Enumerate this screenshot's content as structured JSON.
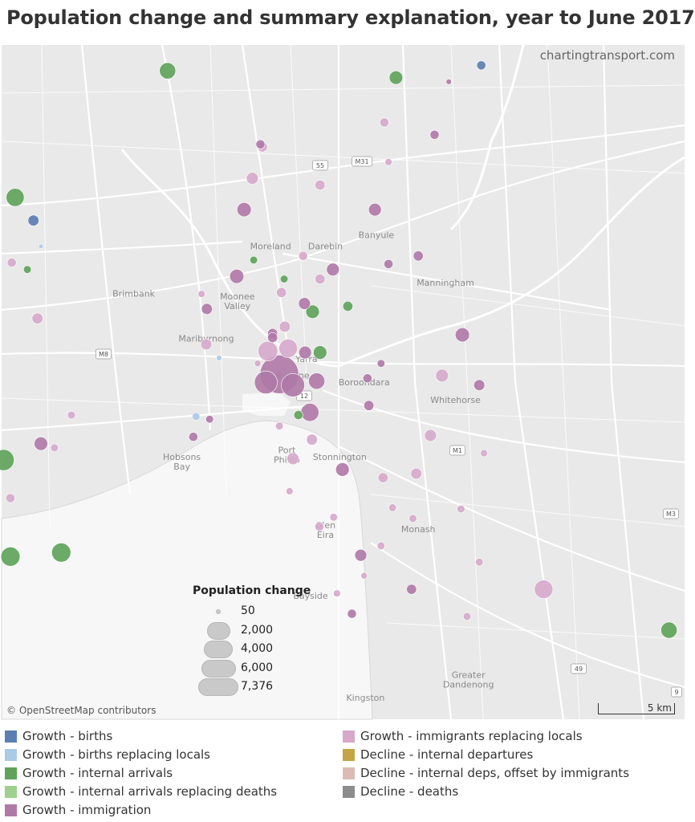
{
  "title": "Population change and summary explanation, year to June 2017",
  "source": "chartingtransport.com",
  "attribution": "© OpenStreetMap contributors",
  "scale_label": "5 km",
  "size_legend": {
    "title": "Population change",
    "entries": [
      {
        "label": "50",
        "value": 50
      },
      {
        "label": "2,000",
        "value": 2000
      },
      {
        "label": "4,000",
        "value": 4000
      },
      {
        "label": "6,000",
        "value": 6000
      },
      {
        "label": "7,376",
        "value": 7376
      }
    ]
  },
  "categories": [
    {
      "key": "births",
      "label": "Growth - births",
      "color": "#5b7fb0"
    },
    {
      "key": "births_replacing",
      "label": "Growth - births replacing locals",
      "color": "#aacbe6"
    },
    {
      "key": "internal",
      "label": "Growth - internal arrivals",
      "color": "#5fa35a"
    },
    {
      "key": "internal_replacing",
      "label": "Growth - internal arrivals replacing deaths",
      "color": "#9dd18d"
    },
    {
      "key": "immigration",
      "label": "Growth - immigration",
      "color": "#b07aa7"
    },
    {
      "key": "immig_replacing",
      "label": "Growth - immigrants replacing locals",
      "color": "#d6a9cb"
    },
    {
      "key": "decline_internal",
      "label": "Decline - internal departures",
      "color": "#c3a545"
    },
    {
      "key": "decline_offset",
      "label": "Decline - internal deps, offset by immigrants",
      "color": "#dcbcb2"
    },
    {
      "key": "decline_deaths",
      "label": "Decline - deaths",
      "color": "#8c8c8c"
    }
  ],
  "places": [
    "Brimbank",
    "Moonee Valley",
    "Moreland",
    "Darebin",
    "Banyule",
    "Manningham",
    "Maribyrnong",
    "Melbourne",
    "Yarra",
    "Boroondara",
    "Whitehorse",
    "Hobsons Bay",
    "Port Phillip",
    "Stonnington",
    "Glen Eira",
    "Monash",
    "Bayside",
    "Kingston",
    "Greater Dandenong"
  ],
  "road_shields": [
    "55",
    "M31",
    "M8",
    "12",
    "M1",
    "M3",
    "49",
    "9"
  ],
  "chart_data": {
    "type": "bubble-map",
    "title": "Population change and summary explanation, year to June 2017",
    "size_metric": "Population change",
    "size_max": 7376,
    "points": [
      {
        "lon": 144.955,
        "lat": -37.812,
        "value": 7376,
        "cat": "immigration"
      },
      {
        "lon": 144.935,
        "lat": -37.818,
        "value": 2600,
        "cat": "immigration"
      },
      {
        "lon": 144.975,
        "lat": -37.82,
        "value": 2700,
        "cat": "immigration"
      },
      {
        "lon": 144.938,
        "lat": -37.795,
        "value": 1900,
        "cat": "immig_replacing"
      },
      {
        "lon": 144.968,
        "lat": -37.793,
        "value": 1700,
        "cat": "immig_replacing"
      },
      {
        "lon": 145.01,
        "lat": -37.817,
        "value": 1300,
        "cat": "immigration"
      },
      {
        "lon": 145.0,
        "lat": -37.84,
        "value": 1600,
        "cat": "immigration"
      },
      {
        "lon": 144.993,
        "lat": -37.796,
        "value": 800,
        "cat": "immigration"
      },
      {
        "lon": 145.015,
        "lat": -37.796,
        "value": 900,
        "cat": "internal"
      },
      {
        "lon": 145.345,
        "lat": -37.97,
        "value": 1700,
        "cat": "immig_replacing"
      },
      {
        "lon": 144.548,
        "lat": -37.875,
        "value": 2200,
        "cat": "internal"
      },
      {
        "lon": 144.558,
        "lat": -37.946,
        "value": 1800,
        "cat": "internal"
      },
      {
        "lon": 144.633,
        "lat": -37.943,
        "value": 1800,
        "cat": "internal"
      },
      {
        "lon": 144.565,
        "lat": -37.682,
        "value": 1600,
        "cat": "internal"
      },
      {
        "lon": 144.79,
        "lat": -37.589,
        "value": 1300,
        "cat": "internal"
      },
      {
        "lon": 145.53,
        "lat": -38.0,
        "value": 1300,
        "cat": "internal"
      },
      {
        "lon": 145.127,
        "lat": -37.594,
        "value": 900,
        "cat": "internal"
      },
      {
        "lon": 144.962,
        "lat": -37.742,
        "value": 300,
        "cat": "internal"
      },
      {
        "lon": 144.917,
        "lat": -37.728,
        "value": 300,
        "cat": "internal"
      },
      {
        "lon": 145.004,
        "lat": -37.766,
        "value": 900,
        "cat": "internal"
      },
      {
        "lon": 145.056,
        "lat": -37.762,
        "value": 500,
        "cat": "internal"
      },
      {
        "lon": 144.983,
        "lat": -37.842,
        "value": 400,
        "cat": "internal"
      },
      {
        "lon": 144.583,
        "lat": -37.735,
        "value": 300,
        "cat": "internal"
      },
      {
        "lon": 144.592,
        "lat": -37.699,
        "value": 600,
        "cat": "births"
      },
      {
        "lon": 145.253,
        "lat": -37.585,
        "value": 400,
        "cat": "births"
      },
      {
        "lon": 144.603,
        "lat": -37.718,
        "value": 100,
        "cat": "births_replacing"
      },
      {
        "lon": 144.866,
        "lat": -37.8,
        "value": 150,
        "cat": "births_replacing"
      },
      {
        "lon": 144.832,
        "lat": -37.843,
        "value": 300,
        "cat": "births_replacing"
      },
      {
        "lon": 144.903,
        "lat": -37.691,
        "value": 1000,
        "cat": "immigration"
      },
      {
        "lon": 145.096,
        "lat": -37.691,
        "value": 800,
        "cat": "immigration"
      },
      {
        "lon": 144.892,
        "lat": -37.74,
        "value": 1000,
        "cat": "immigration"
      },
      {
        "lon": 144.848,
        "lat": -37.764,
        "value": 600,
        "cat": "immigration"
      },
      {
        "lon": 144.992,
        "lat": -37.76,
        "value": 700,
        "cat": "immigration"
      },
      {
        "lon": 145.034,
        "lat": -37.735,
        "value": 800,
        "cat": "immigration"
      },
      {
        "lon": 144.945,
        "lat": -37.782,
        "value": 500,
        "cat": "immigration"
      },
      {
        "lon": 145.225,
        "lat": -37.783,
        "value": 1000,
        "cat": "immigration"
      },
      {
        "lon": 145.25,
        "lat": -37.82,
        "value": 600,
        "cat": "immigration"
      },
      {
        "lon": 145.087,
        "lat": -37.835,
        "value": 500,
        "cat": "immigration"
      },
      {
        "lon": 145.048,
        "lat": -37.882,
        "value": 900,
        "cat": "immigration"
      },
      {
        "lon": 145.075,
        "lat": -37.945,
        "value": 700,
        "cat": "immigration"
      },
      {
        "lon": 145.15,
        "lat": -37.97,
        "value": 500,
        "cat": "immigration"
      },
      {
        "lon": 145.062,
        "lat": -37.988,
        "value": 400,
        "cat": "immigration"
      },
      {
        "lon": 144.603,
        "lat": -37.863,
        "value": 900,
        "cat": "immigration"
      },
      {
        "lon": 144.828,
        "lat": -37.858,
        "value": 400,
        "cat": "immigration"
      },
      {
        "lon": 145.16,
        "lat": -37.725,
        "value": 500,
        "cat": "immigration"
      },
      {
        "lon": 145.184,
        "lat": -37.636,
        "value": 400,
        "cat": "immigration"
      },
      {
        "lon": 144.927,
        "lat": -37.643,
        "value": 400,
        "cat": "immigration"
      },
      {
        "lon": 145.116,
        "lat": -37.731,
        "value": 400,
        "cat": "immigration"
      },
      {
        "lon": 145.085,
        "lat": -37.815,
        "value": 400,
        "cat": "immigration"
      },
      {
        "lon": 145.105,
        "lat": -37.804,
        "value": 300,
        "cat": "immigration"
      },
      {
        "lon": 144.852,
        "lat": -37.845,
        "value": 300,
        "cat": "immigration"
      },
      {
        "lon": 144.945,
        "lat": -37.785,
        "value": 500,
        "cat": "immigration"
      },
      {
        "lon": 145.205,
        "lat": -37.597,
        "value": 150,
        "cat": "immigration"
      },
      {
        "lon": 145.015,
        "lat": -37.742,
        "value": 500,
        "cat": "immig_replacing"
      },
      {
        "lon": 145.195,
        "lat": -37.813,
        "value": 800,
        "cat": "immig_replacing"
      },
      {
        "lon": 145.178,
        "lat": -37.857,
        "value": 700,
        "cat": "immig_replacing"
      },
      {
        "lon": 145.157,
        "lat": -37.885,
        "value": 600,
        "cat": "immig_replacing"
      },
      {
        "lon": 145.003,
        "lat": -37.86,
        "value": 600,
        "cat": "immig_replacing"
      },
      {
        "lon": 144.975,
        "lat": -37.874,
        "value": 700,
        "cat": "immig_replacing"
      },
      {
        "lon": 144.93,
        "lat": -37.645,
        "value": 500,
        "cat": "immig_replacing"
      },
      {
        "lon": 144.915,
        "lat": -37.668,
        "value": 700,
        "cat": "immig_replacing"
      },
      {
        "lon": 145.015,
        "lat": -37.673,
        "value": 500,
        "cat": "immig_replacing"
      },
      {
        "lon": 144.958,
        "lat": -37.752,
        "value": 500,
        "cat": "immig_replacing"
      },
      {
        "lon": 144.963,
        "lat": -37.777,
        "value": 600,
        "cat": "immig_replacing"
      },
      {
        "lon": 144.99,
        "lat": -37.725,
        "value": 400,
        "cat": "immig_replacing"
      },
      {
        "lon": 144.847,
        "lat": -37.79,
        "value": 600,
        "cat": "immig_replacing"
      },
      {
        "lon": 144.598,
        "lat": -37.771,
        "value": 600,
        "cat": "immig_replacing"
      },
      {
        "lon": 144.56,
        "lat": -37.73,
        "value": 400,
        "cat": "immig_replacing"
      },
      {
        "lon": 145.11,
        "lat": -37.627,
        "value": 400,
        "cat": "immig_replacing"
      },
      {
        "lon": 145.108,
        "lat": -37.888,
        "value": 500,
        "cat": "immig_replacing"
      },
      {
        "lon": 145.014,
        "lat": -37.924,
        "value": 400,
        "cat": "immig_replacing"
      },
      {
        "lon": 145.035,
        "lat": -37.917,
        "value": 300,
        "cat": "immig_replacing"
      },
      {
        "lon": 145.105,
        "lat": -37.938,
        "value": 300,
        "cat": "immig_replacing"
      },
      {
        "lon": 145.122,
        "lat": -37.91,
        "value": 300,
        "cat": "immig_replacing"
      },
      {
        "lon": 145.152,
        "lat": -37.918,
        "value": 300,
        "cat": "immig_replacing"
      },
      {
        "lon": 145.223,
        "lat": -37.911,
        "value": 300,
        "cat": "immig_replacing"
      },
      {
        "lon": 145.257,
        "lat": -37.87,
        "value": 250,
        "cat": "immig_replacing"
      },
      {
        "lon": 145.25,
        "lat": -37.95,
        "value": 300,
        "cat": "immig_replacing"
      },
      {
        "lon": 145.232,
        "lat": -37.99,
        "value": 300,
        "cat": "immig_replacing"
      },
      {
        "lon": 145.04,
        "lat": -37.973,
        "value": 250,
        "cat": "immig_replacing"
      },
      {
        "lon": 144.558,
        "lat": -37.903,
        "value": 400,
        "cat": "immig_replacing"
      },
      {
        "lon": 144.648,
        "lat": -37.842,
        "value": 300,
        "cat": "immig_replacing"
      },
      {
        "lon": 144.623,
        "lat": -37.866,
        "value": 300,
        "cat": "immig_replacing"
      },
      {
        "lon": 144.84,
        "lat": -37.753,
        "value": 250,
        "cat": "immig_replacing"
      },
      {
        "lon": 145.116,
        "lat": -37.656,
        "value": 250,
        "cat": "immig_replacing"
      },
      {
        "lon": 144.923,
        "lat": -37.804,
        "value": 200,
        "cat": "immig_replacing"
      },
      {
        "lon": 144.955,
        "lat": -37.85,
        "value": 300,
        "cat": "immig_replacing"
      },
      {
        "lon": 144.97,
        "lat": -37.898,
        "value": 250,
        "cat": "immig_replacing"
      },
      {
        "lon": 145.08,
        "lat": -37.96,
        "value": 200,
        "cat": "immig_replacing"
      }
    ]
  }
}
